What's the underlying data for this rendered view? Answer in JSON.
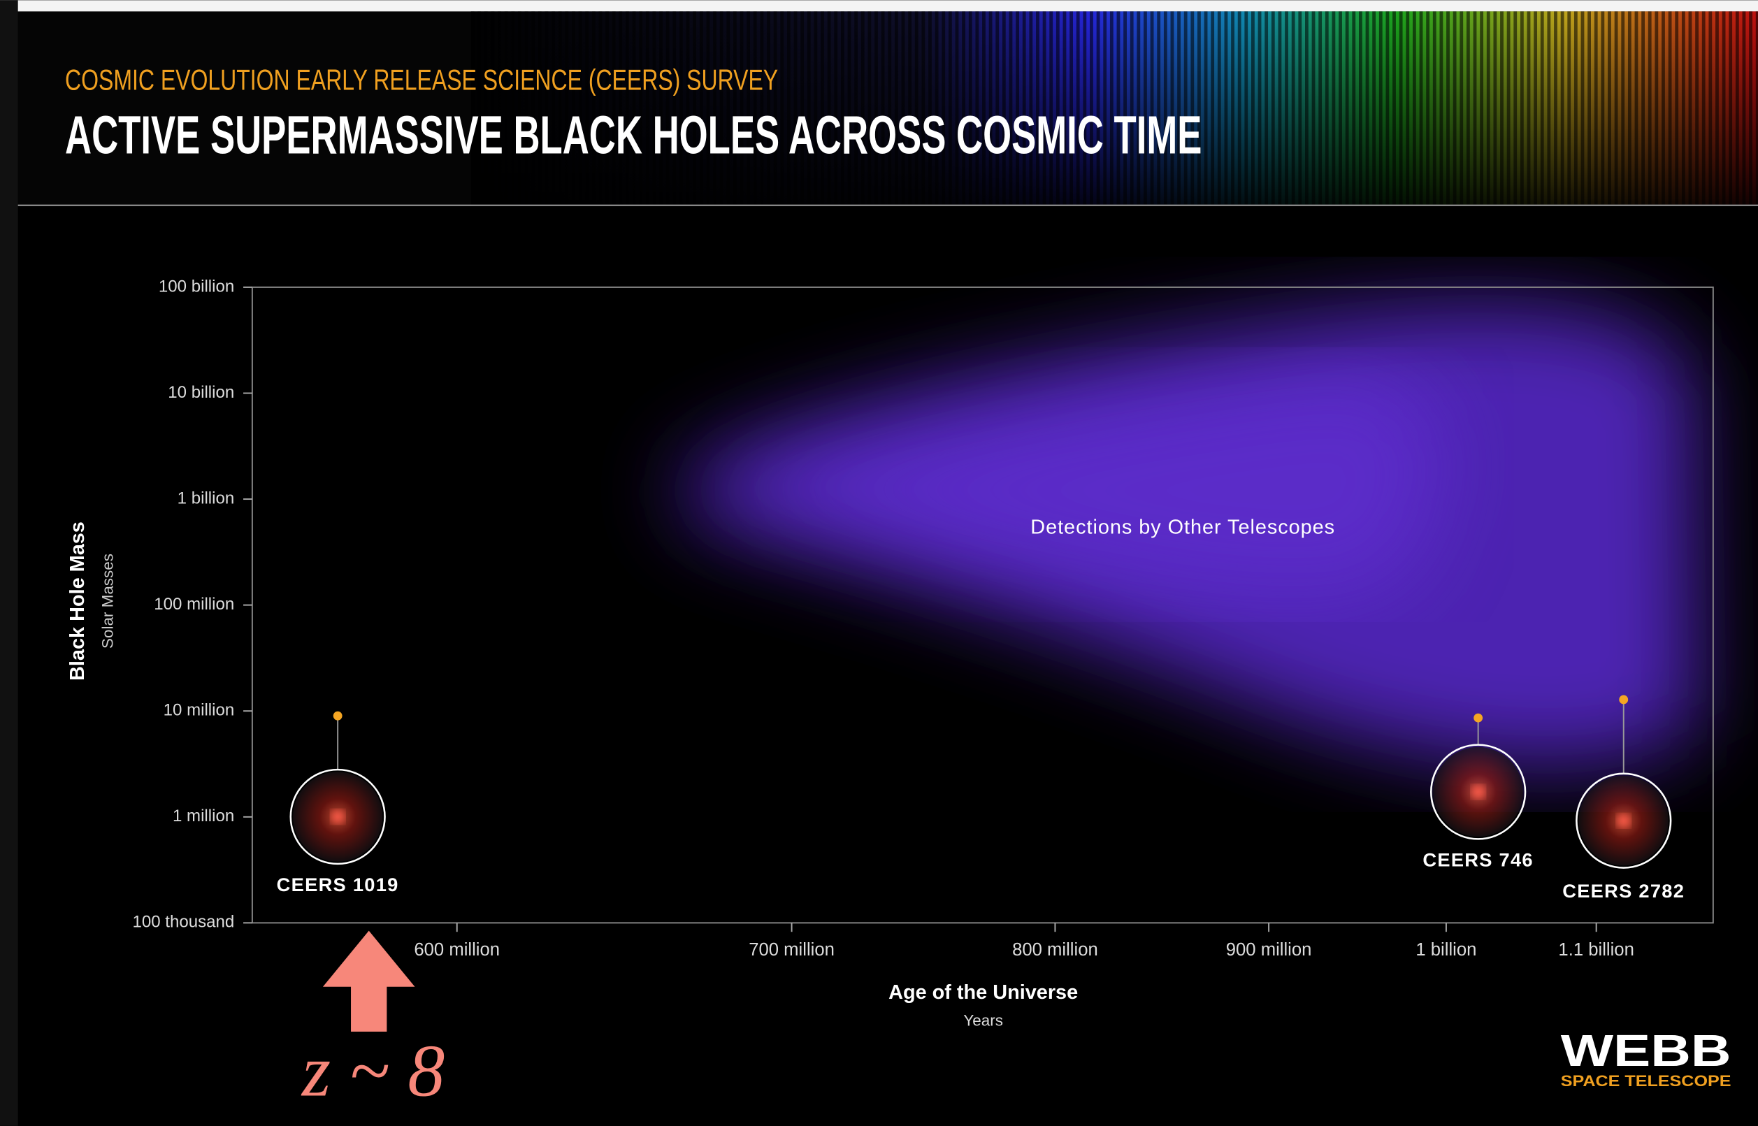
{
  "chart_data": {
    "type": "scatter",
    "supertitle": "COSMIC EVOLUTION EARLY RELEASE SCIENCE (CEERS) SURVEY",
    "title": "ACTIVE SUPERMASSIVE BLACK HOLES ACROSS COSMIC TIME",
    "x_label": "Age of the Universe",
    "x_sublabel": "Years",
    "y_label": "Black Hole Mass",
    "y_sublabel": "Solar Masses",
    "annotation": "Detections by Other Telescopes",
    "x": [
      570000000,
      1020000000,
      1120000000
    ],
    "values": [
      9000000,
      8600000,
      12800000
    ],
    "point_labels": [
      "CEERS 1019",
      "CEERS 746",
      "CEERS 2782"
    ],
    "color": "#f5a623",
    "xlim": [
      550000000,
      1190000000
    ],
    "xticks": [
      {
        "value": 600000000,
        "label": "600 million"
      },
      {
        "value": 700000000,
        "label": "700 million"
      },
      {
        "value": 800000000,
        "label": "800 million"
      },
      {
        "value": 900000000,
        "label": "900 million"
      },
      {
        "value": 1000000000,
        "label": "1 billion"
      },
      {
        "value": 1100000000,
        "label": "1.1 billion"
      }
    ],
    "ylim": [
      100000,
      100000000000
    ],
    "yscale": "log",
    "yticks": [
      {
        "value": 100000,
        "label": "100 thousand"
      },
      {
        "value": 1000000,
        "label": "1 million"
      },
      {
        "value": 10000000,
        "label": "10 million"
      },
      {
        "value": 100000000,
        "label": "100 million"
      },
      {
        "value": 1000000000,
        "label": "1 billion"
      },
      {
        "value": 10000000000,
        "label": "10 billion"
      },
      {
        "value": 100000000000,
        "label": "100 billion"
      }
    ],
    "highlight": "z ~ 8",
    "logo": "WEBB",
    "logo_sub": "SPACE TELESCOPE"
  }
}
